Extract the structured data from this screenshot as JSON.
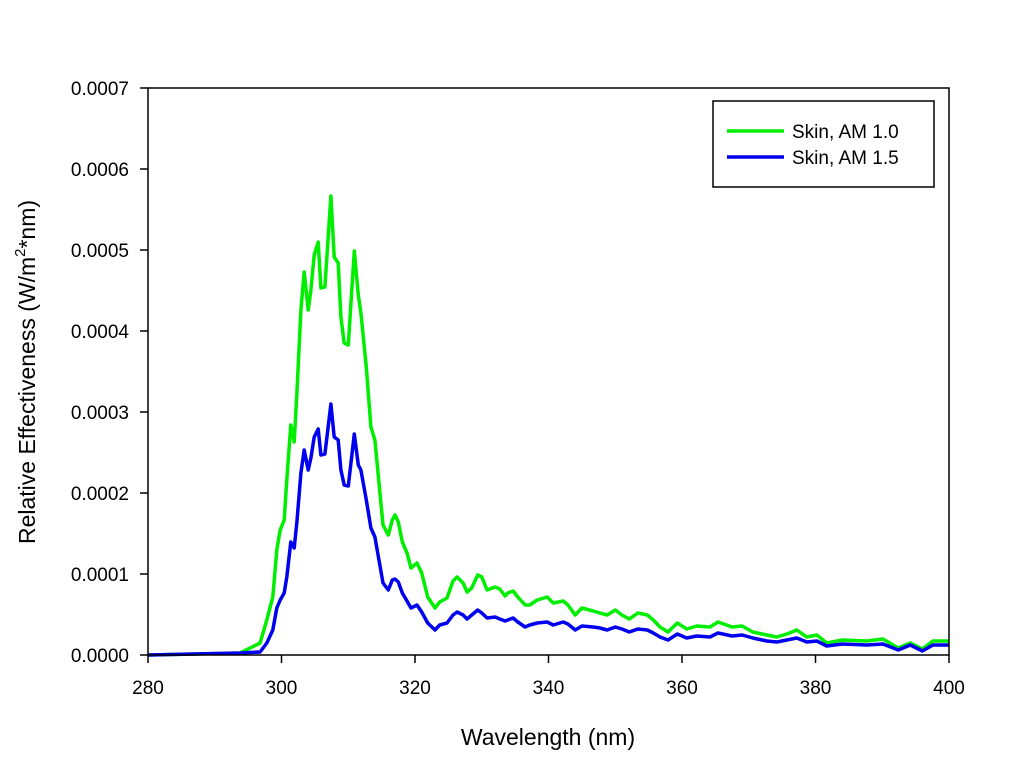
{
  "chart_data": {
    "type": "line",
    "title": "",
    "xlabel": "Wavelength (nm)",
    "ylabel_parts": [
      "Relative Effectiveness (W/m",
      "2",
      "*nm)"
    ],
    "xlim": [
      280,
      400
    ],
    "ylim": [
      0,
      0.0007
    ],
    "xticks": [
      280,
      300,
      320,
      340,
      360,
      380,
      400
    ],
    "xtick_labels": [
      "280",
      "300",
      "320",
      "340",
      "360",
      "380",
      "400"
    ],
    "yticks": [
      0,
      0.0001,
      0.0002,
      0.0003,
      0.0004,
      0.0005,
      0.0006,
      0.0007
    ],
    "ytick_labels": [
      "0.0000",
      "0.0001",
      "0.0002",
      "0.0003",
      "0.0004",
      "0.0005",
      "0.0006",
      "0.0007"
    ],
    "grid": false,
    "legend_position": "top-right",
    "x": [
      280,
      293.8,
      296.8,
      297.8,
      298.7,
      299.3,
      299.8,
      300.4,
      300.8,
      301.4,
      301.9,
      302.3,
      302.9,
      303.4,
      304.0,
      304.4,
      304.9,
      305.5,
      305.9,
      306.5,
      307.4,
      307.9,
      308.5,
      308.9,
      309.4,
      310.0,
      310.9,
      311.5,
      311.9,
      312.7,
      313.4,
      314.0,
      315.2,
      316.0,
      316.6,
      317.0,
      317.5,
      318.1,
      318.8,
      319.4,
      320.3,
      321.0,
      321.9,
      323.0,
      323.7,
      324.8,
      325.7,
      326.3,
      327.2,
      327.8,
      328.5,
      329.4,
      330.0,
      330.8,
      332.0,
      332.7,
      333.5,
      333.9,
      334.7,
      335.4,
      336.5,
      337.2,
      338.3,
      339.8,
      340.7,
      342.2,
      342.9,
      344.0,
      345.0,
      346.7,
      347.7,
      348.8,
      350.0,
      351.0,
      352.1,
      353.4,
      354.8,
      355.7,
      356.7,
      357.9,
      359.3,
      360.7,
      362.2,
      364.2,
      365.4,
      367.5,
      369.0,
      370.6,
      372.7,
      374.2,
      375.7,
      377.2,
      378.7,
      380.2,
      381.7,
      384.0,
      387.7,
      390.1,
      392.4,
      394.2,
      396.0,
      397.6,
      399.0,
      400
    ],
    "series": [
      {
        "name": "Skin, AM 1.0",
        "color": "#00ee00",
        "values": [
          0,
          2.5e-06,
          1.48e-05,
          4.32e-05,
          7.16e-05,
          0.0001296,
          0.0001543,
          0.0001667,
          0.000216,
          0.000284,
          0.000263,
          0.0003235,
          0.0004259,
          0.0004728,
          0.0004259,
          0.0004506,
          0.0004938,
          0.0005099,
          0.0004531,
          0.0004543,
          0.0005667,
          0.0004914,
          0.000484,
          0.0004173,
          0.0003852,
          0.0003827,
          0.0004988,
          0.0004444,
          0.0004222,
          0.0003556,
          0.0002815,
          0.0002654,
          0.0001605,
          0.0001481,
          0.0001667,
          0.0001728,
          0.0001642,
          0.0001395,
          0.0001259,
          0.0001074,
          0.0001136,
          0.0001012,
          7.16e-05,
          5.8e-05,
          6.54e-05,
          7.04e-05,
          9.14e-05,
          9.63e-05,
          8.89e-05,
          7.78e-05,
          8.27e-05,
          9.88e-05,
          9.63e-05,
          8.02e-05,
          8.4e-05,
          8.15e-05,
          7.28e-05,
          7.65e-05,
          7.9e-05,
          7.16e-05,
          6.17e-05,
          6.17e-05,
          6.79e-05,
          7.16e-05,
          6.42e-05,
          6.67e-05,
          6.17e-05,
          4.94e-05,
          5.8e-05,
          5.43e-05,
          5.19e-05,
          4.94e-05,
          5.56e-05,
          4.94e-05,
          4.44e-05,
          5.19e-05,
          4.94e-05,
          4.32e-05,
          3.46e-05,
          2.84e-05,
          3.95e-05,
          3.21e-05,
          3.58e-05,
          3.46e-05,
          4.07e-05,
          3.46e-05,
          3.58e-05,
          2.84e-05,
          2.47e-05,
          2.22e-05,
          2.59e-05,
          3.09e-05,
          2.22e-05,
          2.47e-05,
          1.48e-05,
          1.85e-05,
          1.73e-05,
          1.98e-05,
          8.6e-06,
          1.48e-05,
          7.4e-06,
          1.73e-05,
          1.73e-05,
          1.73e-05
        ]
      },
      {
        "name": "Skin, AM 1.5",
        "color": "#0000ee",
        "values": [
          0,
          2.5e-06,
          3.7e-06,
          1.48e-05,
          3.09e-05,
          5.8e-05,
          6.79e-05,
          7.65e-05,
          9.63e-05,
          0.0001395,
          0.0001321,
          0.0001642,
          0.0002247,
          0.0002531,
          0.0002284,
          0.0002432,
          0.0002691,
          0.000279,
          0.0002469,
          0.0002481,
          0.0003099,
          0.0002691,
          0.0002654,
          0.0002284,
          0.0002099,
          0.0002086,
          0.0002728,
          0.0002346,
          0.0002284,
          0.0001914,
          0.0001568,
          0.0001457,
          8.89e-05,
          8.02e-05,
          9.26e-05,
          9.38e-05,
          9.01e-05,
          7.65e-05,
          6.67e-05,
          5.8e-05,
          6.17e-05,
          5.31e-05,
          3.95e-05,
          3.09e-05,
          3.7e-05,
          3.95e-05,
          4.94e-05,
          5.31e-05,
          4.94e-05,
          4.44e-05,
          4.94e-05,
          5.56e-05,
          5.19e-05,
          4.57e-05,
          4.69e-05,
          4.44e-05,
          4.2e-05,
          4.32e-05,
          4.57e-05,
          4.07e-05,
          3.46e-05,
          3.7e-05,
          3.95e-05,
          4.07e-05,
          3.7e-05,
          4.07e-05,
          3.83e-05,
          3.09e-05,
          3.58e-05,
          3.46e-05,
          3.33e-05,
          3.09e-05,
          3.46e-05,
          3.21e-05,
          2.84e-05,
          3.21e-05,
          3.09e-05,
          2.72e-05,
          2.22e-05,
          1.85e-05,
          2.59e-05,
          2.1e-05,
          2.35e-05,
          2.22e-05,
          2.72e-05,
          2.35e-05,
          2.47e-05,
          2.1e-05,
          1.73e-05,
          1.6e-05,
          1.85e-05,
          2.1e-05,
          1.6e-05,
          1.73e-05,
          1.11e-05,
          1.36e-05,
          1.23e-05,
          1.36e-05,
          6.2e-06,
          1.23e-05,
          4.9e-06,
          1.23e-05,
          1.23e-05,
          1.23e-05
        ]
      }
    ]
  }
}
